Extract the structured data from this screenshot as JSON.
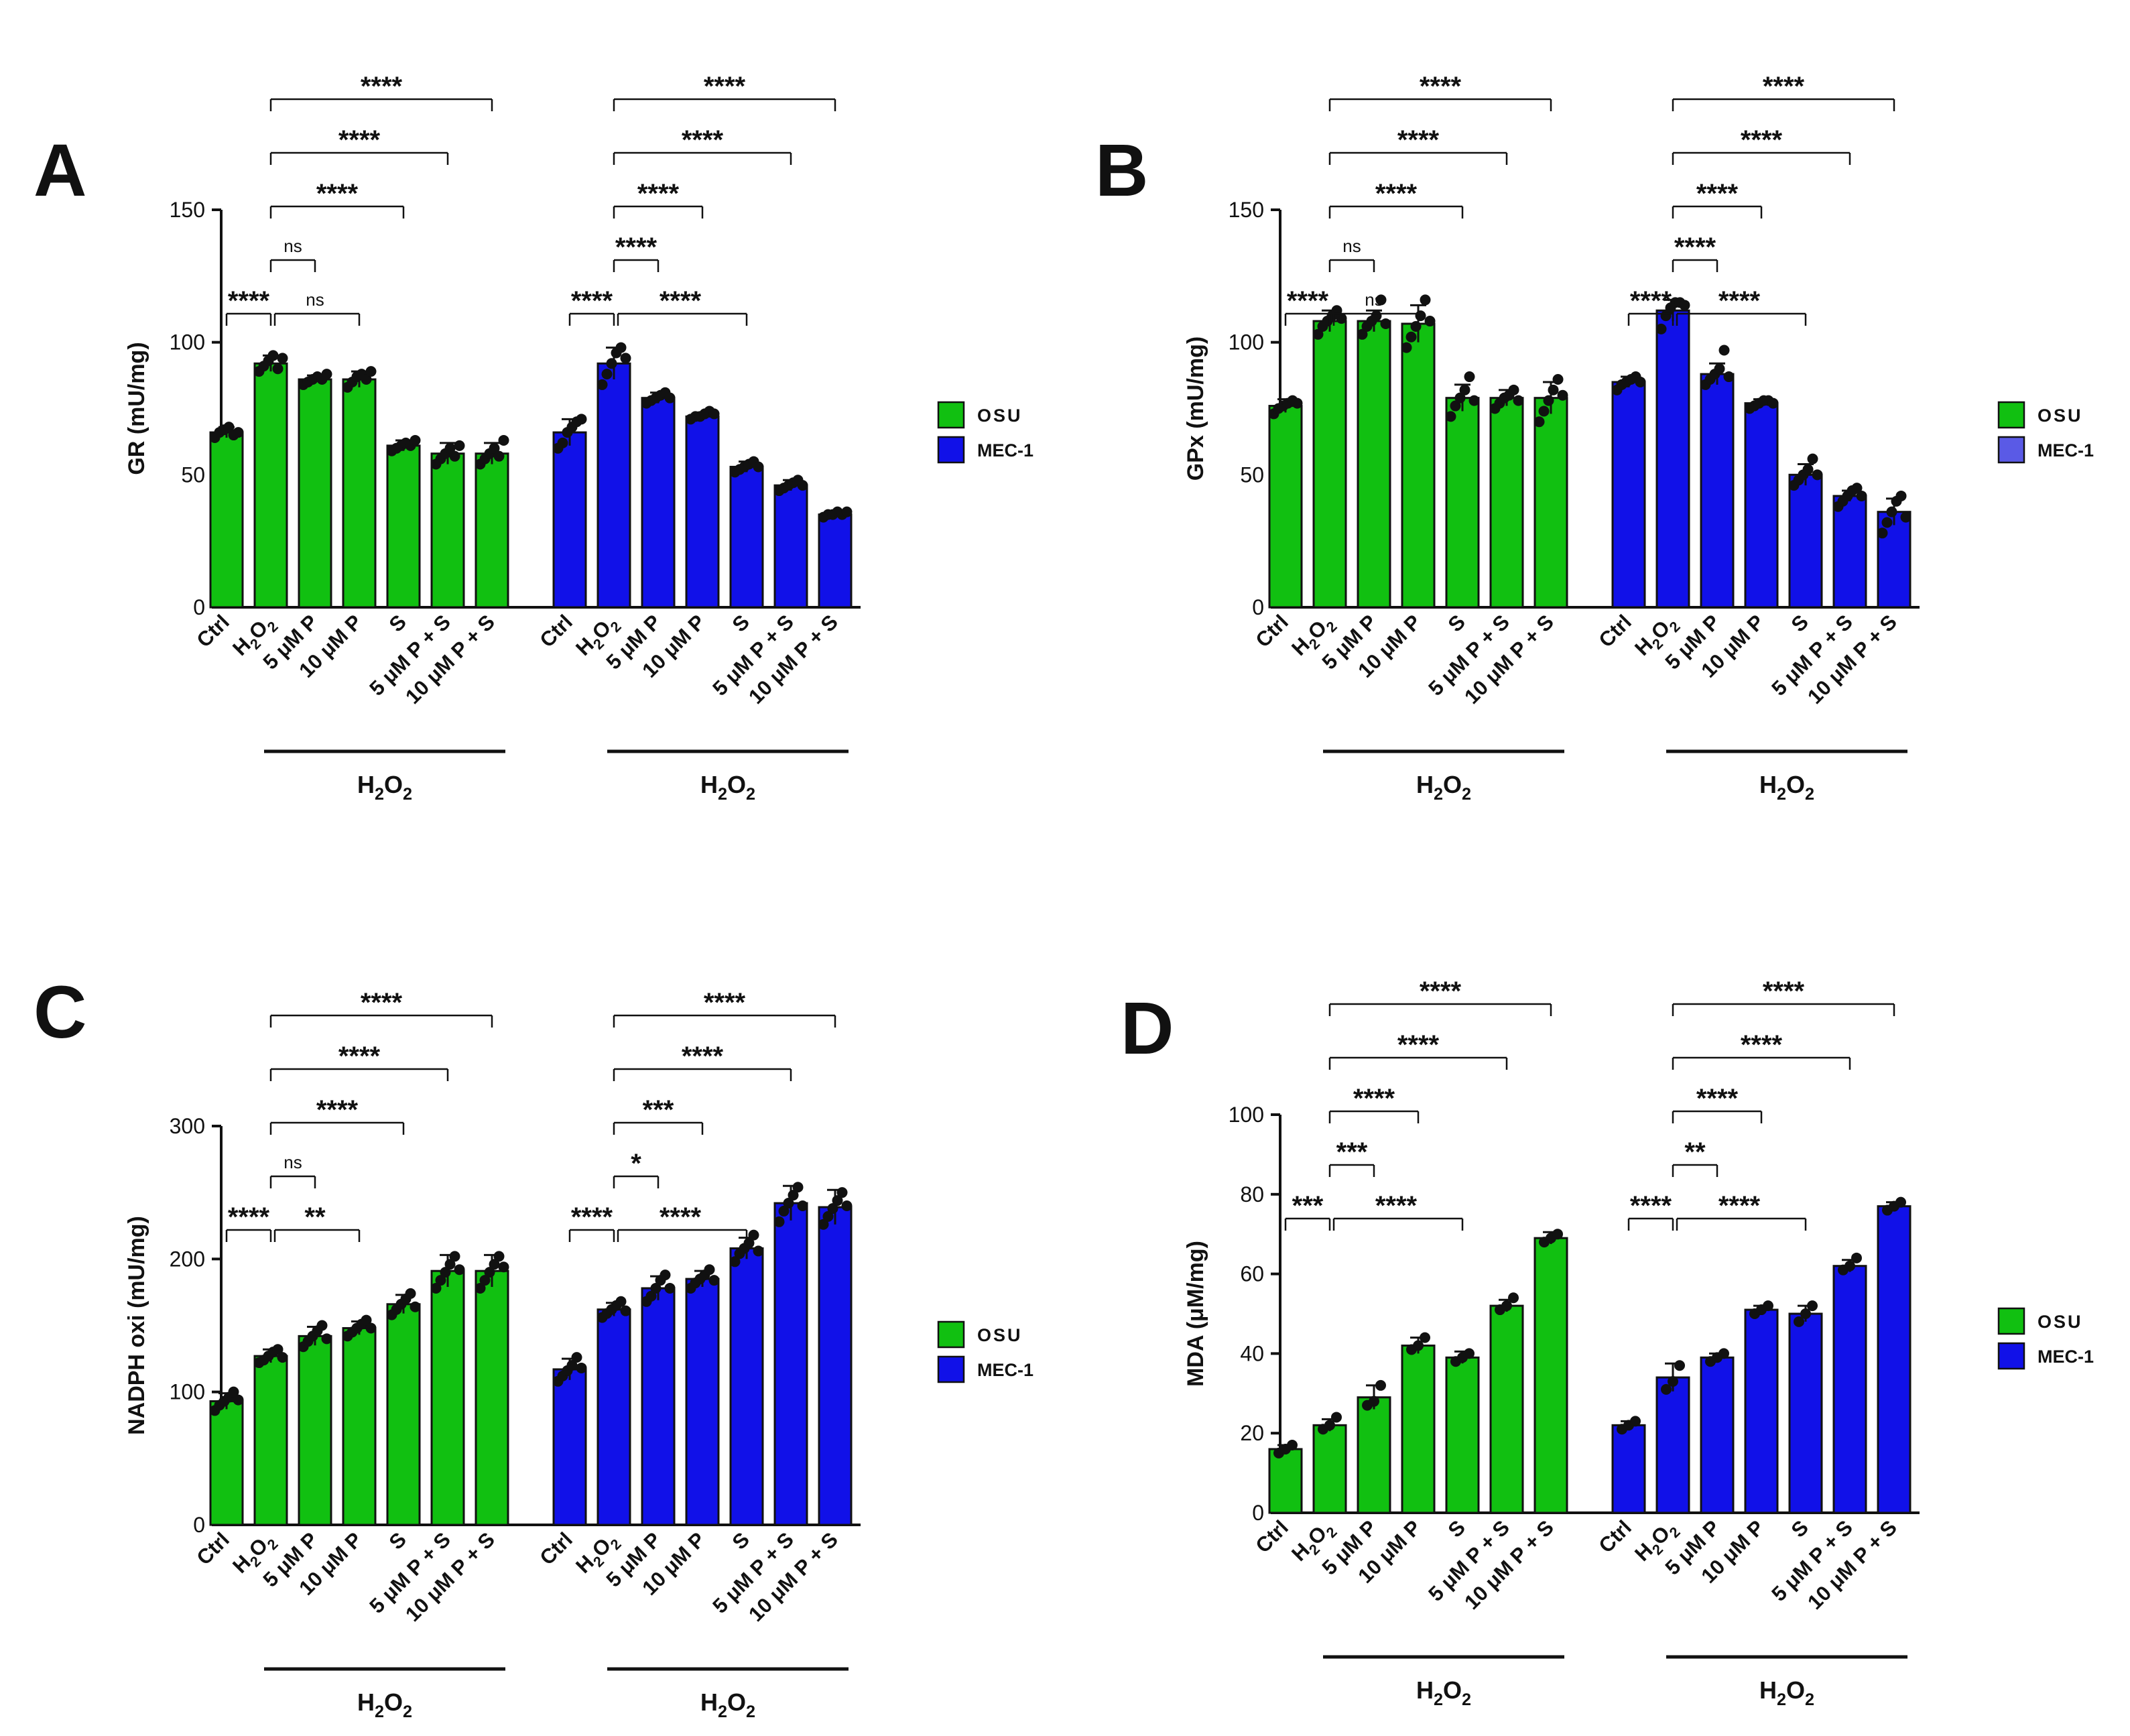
{
  "figure": {
    "legend": {
      "osu": "OSU",
      "mec": "MEC-1"
    },
    "colors": {
      "osu": "#11c011",
      "mec": "#1111e8",
      "mec_b_legend": "#5a5ae6",
      "ink": "#111111"
    },
    "treatment_group_label": "H2O2",
    "categories": [
      "Ctrl",
      "H2O2",
      "5 μM P",
      "10 μM P",
      "S",
      "5 μM P + S",
      "10 μM P + S"
    ],
    "cell_lines": [
      "OSU",
      "MEC-1"
    ]
  },
  "chart_data": [
    {
      "panel": "A",
      "type": "bar",
      "ylabel": "GR (mU/mg)",
      "ylim": [
        0,
        150
      ],
      "yticks": [
        0,
        50,
        100,
        150
      ],
      "categories": [
        "Ctrl",
        "H2O2",
        "5 μM P",
        "10 μM P",
        "S",
        "5 μM P + S",
        "10 μM P + S"
      ],
      "series": [
        {
          "name": "OSU",
          "values": [
            66,
            92,
            86,
            86,
            61,
            58,
            58
          ],
          "errors": [
            2,
            3,
            1.5,
            3,
            2,
            4,
            4
          ],
          "points": [
            [
              64,
              66,
              67,
              68,
              65,
              66
            ],
            [
              89,
              91,
              93,
              95,
              90,
              94
            ],
            [
              84,
              85,
              86,
              87,
              86,
              88
            ],
            [
              83,
              85,
              87,
              88,
              86,
              89
            ],
            [
              59,
              60,
              61,
              62,
              61,
              63
            ],
            [
              54,
              56,
              58,
              60,
              57,
              61
            ],
            [
              54,
              56,
              58,
              60,
              57,
              63
            ]
          ]
        },
        {
          "name": "MEC-1",
          "values": [
            66,
            92,
            79,
            72,
            53,
            46,
            35
          ],
          "errors": [
            5,
            6,
            2,
            1.5,
            2,
            2,
            1
          ],
          "points": [
            [
              60,
              62,
              66,
              68,
              70,
              71
            ],
            [
              84,
              88,
              92,
              96,
              98,
              94
            ],
            [
              77,
              78,
              79,
              80,
              81,
              79
            ],
            [
              71,
              72,
              72,
              73,
              74,
              73
            ],
            [
              51,
              52,
              53,
              54,
              55,
              53
            ],
            [
              44,
              45,
              46,
              47,
              48,
              46
            ],
            [
              34,
              35,
              35,
              36,
              35,
              36
            ]
          ]
        }
      ],
      "comparisons": [
        {
          "series": 0,
          "from": 0,
          "to": 1,
          "label": "****",
          "level": 0
        },
        {
          "series": 0,
          "from": 1,
          "to": 2,
          "label": "ns",
          "level": 1
        },
        {
          "series": 0,
          "from": 1,
          "to": 3,
          "label": "ns",
          "level": 0
        },
        {
          "series": 0,
          "from": 1,
          "to": 4,
          "label": "****",
          "level": 2
        },
        {
          "series": 0,
          "from": 1,
          "to": 5,
          "label": "****",
          "level": 3
        },
        {
          "series": 0,
          "from": 1,
          "to": 6,
          "label": "****",
          "level": 4
        },
        {
          "series": 1,
          "from": 0,
          "to": 1,
          "label": "****",
          "level": 0
        },
        {
          "series": 1,
          "from": 1,
          "to": 2,
          "label": "****",
          "level": 1
        },
        {
          "series": 1,
          "from": 1,
          "to": 4,
          "label": "****",
          "level": 0
        },
        {
          "series": 1,
          "from": 1,
          "to": 3,
          "label": "****",
          "level": 2
        },
        {
          "series": 1,
          "from": 1,
          "to": 5,
          "label": "****",
          "level": 3
        },
        {
          "series": 1,
          "from": 1,
          "to": 6,
          "label": "****",
          "level": 4
        }
      ]
    },
    {
      "panel": "B",
      "type": "bar",
      "ylabel": "GPx (mU/mg)",
      "ylim": [
        0,
        150
      ],
      "yticks": [
        0,
        50,
        100,
        150
      ],
      "categories": [
        "Ctrl",
        "H2O2",
        "5 μM P",
        "10 μM P",
        "S",
        "5 μM P + S",
        "10 μM P + S"
      ],
      "series": [
        {
          "name": "OSU",
          "values": [
            76,
            108,
            108,
            107,
            79,
            79,
            79
          ],
          "errors": [
            2.5,
            4,
            4,
            7,
            5,
            3,
            6
          ],
          "points": [
            [
              73,
              75,
              76,
              77,
              78,
              77
            ],
            [
              103,
              106,
              108,
              110,
              112,
              109
            ],
            [
              103,
              106,
              108,
              110,
              116,
              107
            ],
            [
              98,
              102,
              106,
              110,
              116,
              108
            ],
            [
              72,
              76,
              79,
              82,
              87,
              78
            ],
            [
              75,
              77,
              79,
              80,
              82,
              78
            ],
            [
              70,
              74,
              78,
              82,
              86,
              80
            ]
          ]
        },
        {
          "name": "MEC-1",
          "values": [
            85,
            112,
            88,
            77,
            50,
            42,
            36
          ],
          "errors": [
            2,
            4,
            4,
            1.5,
            4,
            2,
            5
          ],
          "points": [
            [
              82,
              84,
              85,
              86,
              87,
              85
            ],
            [
              105,
              110,
              113,
              115,
              115,
              114
            ],
            [
              84,
              86,
              88,
              90,
              97,
              87
            ],
            [
              75,
              76,
              77,
              78,
              78,
              77
            ],
            [
              46,
              48,
              50,
              52,
              56,
              50
            ],
            [
              38,
              40,
              42,
              44,
              45,
              42
            ],
            [
              28,
              32,
              36,
              40,
              42,
              34
            ]
          ]
        }
      ],
      "comparisons": [
        {
          "series": 0,
          "from": 0,
          "to": 1,
          "label": "****",
          "level": 0
        },
        {
          "series": 0,
          "from": 1,
          "to": 2,
          "label": "ns",
          "level": 1
        },
        {
          "series": 0,
          "from": 1,
          "to": 3,
          "label": "ns",
          "level": 0
        },
        {
          "series": 0,
          "from": 1,
          "to": 4,
          "label": "****",
          "level": 2
        },
        {
          "series": 0,
          "from": 1,
          "to": 5,
          "label": "****",
          "level": 3
        },
        {
          "series": 0,
          "from": 1,
          "to": 6,
          "label": "****",
          "level": 4
        },
        {
          "series": 1,
          "from": 0,
          "to": 1,
          "label": "****",
          "level": 0
        },
        {
          "series": 1,
          "from": 1,
          "to": 2,
          "label": "****",
          "level": 1
        },
        {
          "series": 1,
          "from": 1,
          "to": 4,
          "label": "****",
          "level": 0
        },
        {
          "series": 1,
          "from": 1,
          "to": 3,
          "label": "****",
          "level": 2
        },
        {
          "series": 1,
          "from": 1,
          "to": 5,
          "label": "****",
          "level": 3
        },
        {
          "series": 1,
          "from": 1,
          "to": 6,
          "label": "****",
          "level": 4
        }
      ]
    },
    {
      "panel": "C",
      "type": "bar",
      "ylabel": "NADPH oxi (mU/mg)",
      "ylim": [
        0,
        300
      ],
      "yticks": [
        0,
        100,
        200,
        300
      ],
      "categories": [
        "Ctrl",
        "H2O2",
        "5 μM P",
        "10 μM P",
        "S",
        "5 μM P + S",
        "10 μM P + S"
      ],
      "series": [
        {
          "name": "OSU",
          "values": [
            93,
            127,
            142,
            148,
            166,
            191,
            191
          ],
          "errors": [
            6,
            5,
            7,
            5,
            7,
            12,
            12
          ],
          "points": [
            [
              86,
              90,
              93,
              96,
              100,
              94
            ],
            [
              122,
              124,
              127,
              130,
              132,
              126
            ],
            [
              134,
              138,
              142,
              146,
              150,
              140
            ],
            [
              142,
              145,
              148,
              151,
              154,
              148
            ],
            [
              158,
              162,
              166,
              170,
              174,
              164
            ],
            [
              178,
              184,
              190,
              196,
              202,
              192
            ],
            [
              178,
              184,
              190,
              196,
              202,
              194
            ]
          ]
        },
        {
          "name": "MEC-1",
          "values": [
            117,
            162,
            178,
            185,
            208,
            242,
            239
          ],
          "errors": [
            8,
            5,
            9,
            6,
            8,
            13,
            13
          ],
          "points": [
            [
              108,
              112,
              116,
              120,
              126,
              118
            ],
            [
              156,
              159,
              162,
              165,
              168,
              161
            ],
            [
              168,
              172,
              178,
              184,
              188,
              178
            ],
            [
              178,
              182,
              185,
              188,
              192,
              184
            ],
            [
              198,
              204,
              208,
              212,
              218,
              206
            ],
            [
              228,
              236,
              242,
              248,
              254,
              240
            ],
            [
              226,
              232,
              238,
              244,
              250,
              240
            ]
          ]
        }
      ],
      "comparisons": [
        {
          "series": 0,
          "from": 0,
          "to": 1,
          "label": "****",
          "level": 0
        },
        {
          "series": 0,
          "from": 1,
          "to": 2,
          "label": "ns",
          "level": 1
        },
        {
          "series": 0,
          "from": 1,
          "to": 3,
          "label": "**",
          "level": 0
        },
        {
          "series": 0,
          "from": 1,
          "to": 4,
          "label": "****",
          "level": 2
        },
        {
          "series": 0,
          "from": 1,
          "to": 5,
          "label": "****",
          "level": 3
        },
        {
          "series": 0,
          "from": 1,
          "to": 6,
          "label": "****",
          "level": 4
        },
        {
          "series": 1,
          "from": 0,
          "to": 1,
          "label": "****",
          "level": 0
        },
        {
          "series": 1,
          "from": 1,
          "to": 2,
          "label": "*",
          "level": 1
        },
        {
          "series": 1,
          "from": 1,
          "to": 4,
          "label": "****",
          "level": 0
        },
        {
          "series": 1,
          "from": 1,
          "to": 3,
          "label": "***",
          "level": 2
        },
        {
          "series": 1,
          "from": 1,
          "to": 5,
          "label": "****",
          "level": 3
        },
        {
          "series": 1,
          "from": 1,
          "to": 6,
          "label": "****",
          "level": 4
        }
      ]
    },
    {
      "panel": "D",
      "type": "bar",
      "ylabel": "MDA (μM/mg)",
      "ylim": [
        0,
        100
      ],
      "yticks": [
        0,
        20,
        40,
        60,
        80,
        100
      ],
      "categories": [
        "Ctrl",
        "H2O2",
        "5 μM P",
        "10 μM P",
        "S",
        "5 μM P + S",
        "10 μM P + S"
      ],
      "series": [
        {
          "name": "OSU",
          "values": [
            16,
            22,
            29,
            42,
            39,
            52,
            69
          ],
          "errors": [
            1,
            1.5,
            3,
            2,
            1.5,
            1.5,
            1.5
          ],
          "points": [
            [
              15,
              16,
              17
            ],
            [
              21,
              22,
              24
            ],
            [
              27,
              28,
              32
            ],
            [
              41,
              42,
              44
            ],
            [
              38,
              39,
              40
            ],
            [
              51,
              52,
              54
            ],
            [
              68,
              69,
              70
            ]
          ]
        },
        {
          "name": "MEC-1",
          "values": [
            22,
            34,
            39,
            51,
            50,
            62,
            77
          ],
          "errors": [
            1,
            3.5,
            1,
            1,
            2,
            1.5,
            1
          ],
          "points": [
            [
              21,
              22,
              23
            ],
            [
              31,
              33,
              37
            ],
            [
              38,
              39,
              40
            ],
            [
              50,
              51,
              52
            ],
            [
              48,
              50,
              52
            ],
            [
              61,
              62,
              64
            ],
            [
              76,
              77,
              78
            ]
          ]
        }
      ],
      "comparisons": [
        {
          "series": 0,
          "from": 0,
          "to": 1,
          "label": "***",
          "level": 0
        },
        {
          "series": 0,
          "from": 1,
          "to": 2,
          "label": "***",
          "level": 1
        },
        {
          "series": 0,
          "from": 1,
          "to": 4,
          "label": "****",
          "level": 0
        },
        {
          "series": 0,
          "from": 1,
          "to": 3,
          "label": "****",
          "level": 2
        },
        {
          "series": 0,
          "from": 1,
          "to": 5,
          "label": "****",
          "level": 3
        },
        {
          "series": 0,
          "from": 1,
          "to": 6,
          "label": "****",
          "level": 4
        },
        {
          "series": 1,
          "from": 0,
          "to": 1,
          "label": "****",
          "level": 0
        },
        {
          "series": 1,
          "from": 1,
          "to": 2,
          "label": "**",
          "level": 1
        },
        {
          "series": 1,
          "from": 1,
          "to": 4,
          "label": "****",
          "level": 0
        },
        {
          "series": 1,
          "from": 1,
          "to": 3,
          "label": "****",
          "level": 2
        },
        {
          "series": 1,
          "from": 1,
          "to": 5,
          "label": "****",
          "level": 3
        },
        {
          "series": 1,
          "from": 1,
          "to": 6,
          "label": "****",
          "level": 4
        }
      ]
    }
  ]
}
